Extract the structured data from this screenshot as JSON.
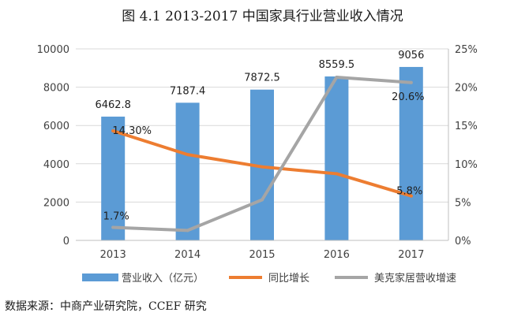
{
  "title": "图 4.1 2013-2017 中国家具行业营业收入情况",
  "source": "数据来源：中商产业研究院，CCEF 研究",
  "chart_data": {
    "type": "bar",
    "title": "图 4.1 2013-2017 中国家具行业营业收入情况",
    "categories": [
      "2013",
      "2014",
      "2015",
      "2016",
      "2017"
    ],
    "y_left": {
      "ylim": [
        0,
        10000
      ],
      "ticks": [
        "0",
        "2000",
        "4000",
        "6000",
        "8000",
        "10000"
      ]
    },
    "y_right": {
      "ylim": [
        0,
        25
      ],
      "ticks": [
        "0%",
        "5%",
        "10%",
        "15%",
        "20%",
        "25%"
      ]
    },
    "grid": true,
    "legend": "bottom",
    "series": [
      {
        "name": "营业收入（亿元）",
        "type": "bar",
        "axis": "left",
        "color": "#5B9BD5",
        "values": [
          6462.8,
          7187.4,
          7872.5,
          8559.5,
          9056
        ],
        "labels": [
          "6462.8",
          "7187.4",
          "7872.5",
          "8559.5",
          "9056"
        ]
      },
      {
        "name": "同比增长",
        "type": "line",
        "axis": "right",
        "color": "#ED7D31",
        "values": [
          14.3,
          11.2,
          9.6,
          8.7,
          5.8
        ],
        "labels": [
          "14.30%",
          "",
          "",
          "",
          "5.8%"
        ]
      },
      {
        "name": "美克家居营收增速",
        "type": "line",
        "axis": "right",
        "color": "#A5A5A5",
        "values": [
          1.7,
          1.3,
          5.3,
          21.3,
          20.6
        ],
        "labels": [
          "1.7%",
          "",
          "",
          "",
          "20.6%"
        ]
      }
    ]
  }
}
